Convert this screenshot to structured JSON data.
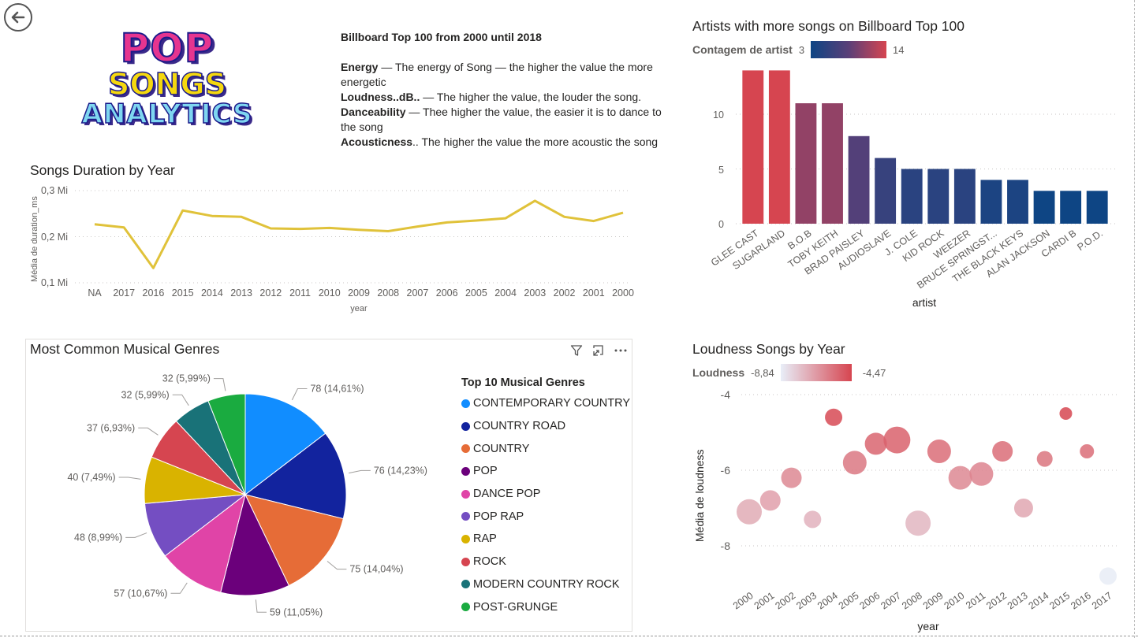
{
  "logo": {
    "line1": "POP",
    "line2": "SONGS",
    "line3": "ANALYTICS"
  },
  "description": {
    "title": "Billboard Top 100 from 2000 until 2018",
    "items": [
      {
        "term": "Energy",
        "text": " — The energy of Song — the higher the value the more energetic"
      },
      {
        "term": "Loudness..dB..",
        "text": " — The higher the value, the louder the song."
      },
      {
        "term": "Danceability",
        "text": " — Thee higher the value, the easier it is to dance to the song"
      },
      {
        "term": "Acousticness",
        "text": ".. The higher the value the more acoustic the song"
      }
    ]
  },
  "icons": {
    "back": "back-arrow-icon",
    "filter": "filter-icon",
    "focus": "focus-mode-icon",
    "more": "more-options-icon"
  },
  "colors": {
    "line": "#e0c23a",
    "bar_low": "#0e4584",
    "bar_high": "#d64550",
    "bubble_low": "#e8eef8",
    "bubble_high": "#d64550"
  },
  "duration_chart": {
    "title": "Songs Duration by Year",
    "ylabel": "Média de duration_ms",
    "xlabel": "year",
    "y_ticks": [
      "0,3 Mi",
      "0,2 Mi",
      "0,1 Mi"
    ],
    "chart_data": {
      "type": "line",
      "categories": [
        "NA",
        "2017",
        "2016",
        "2015",
        "2014",
        "2013",
        "2012",
        "2011",
        "2010",
        "2009",
        "2008",
        "2007",
        "2006",
        "2005",
        "2004",
        "2003",
        "2002",
        "2001",
        "2000"
      ],
      "values": [
        227000,
        220000,
        132000,
        257000,
        245000,
        243000,
        218000,
        217000,
        219000,
        215000,
        212000,
        222000,
        231000,
        235000,
        240000,
        278000,
        243000,
        234000,
        252000
      ],
      "ylim": [
        100000,
        300000
      ],
      "grid": true
    }
  },
  "artists_chart": {
    "title": "Artists with more songs on Billboard Top 100",
    "legend_label": "Contagem de artist",
    "legend_min": "3",
    "legend_max": "14",
    "xlabel": "artist",
    "y_ticks": [
      "10",
      "5",
      "0"
    ],
    "chart_data": {
      "type": "bar",
      "categories": [
        "GLEE CAST",
        "SUGARLAND",
        "B.O.B",
        "TOBY KEITH",
        "BRAD PAISLEY",
        "AUDIOSLAVE",
        "J. COLE",
        "KID ROCK",
        "WEEZER",
        "BRUCE SPRINGST...",
        "THE BLACK KEYS",
        "ALAN JACKSON",
        "CARDI B",
        "P.O.D."
      ],
      "values": [
        14,
        14,
        11,
        11,
        8,
        6,
        5,
        5,
        5,
        4,
        4,
        3,
        3,
        3
      ],
      "ylim": [
        0,
        14
      ],
      "grid": true
    }
  },
  "genres_chart": {
    "title": "Most Common Musical Genres",
    "legend_title": "Top 10 Musical Genres",
    "chart_data": {
      "type": "pie",
      "categories": [
        "CONTEMPORARY COUNTRY",
        "COUNTRY ROAD",
        "COUNTRY",
        "POP",
        "DANCE POP",
        "POP RAP",
        "RAP",
        "ROCK",
        "MODERN COUNTRY ROCK",
        "POST-GRUNGE"
      ],
      "values": [
        78,
        76,
        75,
        59,
        57,
        48,
        40,
        37,
        32,
        32
      ],
      "labels": [
        "78 (14,61%)",
        "76 (14,23%)",
        "75 (14,04%)",
        "59 (11,05%)",
        "57 (10,67%)",
        "48 (8,99%)",
        "40 (7,49%)",
        "37 (6,93%)",
        "32 (5,99%)",
        "32 (5,99%)"
      ],
      "colors": [
        "#118dff",
        "#12239e",
        "#e66c37",
        "#6b007b",
        "#e044a7",
        "#744ec2",
        "#d9b300",
        "#d64550",
        "#197278",
        "#1aab40"
      ]
    }
  },
  "loudness_chart": {
    "title": "Loudness Songs by Year",
    "legend_label": "Loudness",
    "legend_min": "-8,84",
    "legend_max": "-4,47",
    "ylabel": "Média de loudness",
    "xlabel": "year",
    "y_ticks": [
      "-4",
      "-6",
      "-8"
    ],
    "chart_data": {
      "type": "scatter",
      "categories": [
        "2000",
        "2001",
        "2002",
        "2003",
        "2004",
        "2005",
        "2006",
        "2007",
        "2008",
        "2009",
        "2010",
        "2011",
        "2012",
        "2013",
        "2014",
        "2015",
        "2016",
        "2017"
      ],
      "values": [
        -7.1,
        -6.8,
        -6.2,
        -7.3,
        -4.6,
        -5.8,
        -5.3,
        -5.2,
        -7.4,
        -5.5,
        -6.2,
        -6.1,
        -5.5,
        -7.0,
        -5.7,
        -4.5,
        -5.5,
        -8.8
      ],
      "ylim": [
        -8.6,
        -3.7
      ],
      "grid": true
    }
  }
}
